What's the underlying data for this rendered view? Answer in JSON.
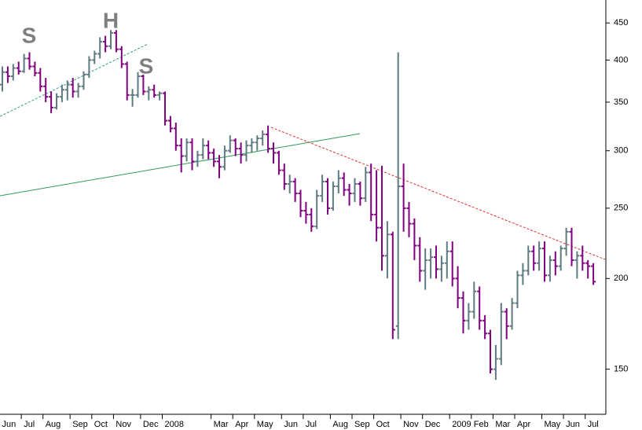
{
  "chart_data": {
    "type": "ohlc",
    "log_scale": true,
    "annotations": [
      "S",
      "H",
      "S"
    ],
    "categories": [
      "Jun",
      null,
      null,
      null,
      "Jul",
      null,
      null,
      null,
      "Aug",
      null,
      null,
      null,
      null,
      "Sep",
      null,
      null,
      null,
      "Oct",
      null,
      null,
      null,
      "Nov",
      null,
      null,
      null,
      null,
      "Dec",
      null,
      null,
      null,
      "2008",
      null,
      null,
      null,
      null,
      null,
      null,
      null,
      null,
      "Mar",
      null,
      null,
      null,
      "Apr",
      null,
      null,
      null,
      "May",
      null,
      null,
      null,
      null,
      "Jun",
      null,
      null,
      null,
      "Jul",
      null,
      null,
      null,
      null,
      "Aug",
      null,
      null,
      null,
      "Sep",
      null,
      null,
      null,
      "Oct",
      null,
      null,
      null,
      null,
      "Nov",
      null,
      null,
      null,
      "Dec",
      null,
      null,
      null,
      null,
      "2009",
      null,
      null,
      null,
      "Feb",
      null,
      null,
      null,
      "Mar",
      null,
      null,
      null,
      "Apr",
      null,
      null,
      null,
      null,
      "May",
      null,
      null,
      null,
      "Jun",
      null,
      null,
      null,
      "Jul",
      null
    ],
    "open": [
      370,
      385,
      380,
      390,
      386,
      402,
      392,
      384,
      368,
      356,
      344,
      356,
      364,
      370,
      362,
      368,
      382,
      400,
      408,
      424,
      418,
      436,
      414,
      395,
      358,
      358,
      380,
      362,
      364,
      358,
      360,
      330,
      322,
      305,
      295,
      308,
      290,
      296,
      305,
      298,
      290,
      285,
      300,
      310,
      302,
      296,
      305,
      308,
      312,
      316,
      302,
      298,
      282,
      270,
      272,
      262,
      248,
      245,
      236,
      260,
      272,
      250,
      268,
      275,
      265,
      262,
      270,
      258,
      280,
      245,
      235,
      215,
      230,
      172,
      268,
      250,
      238,
      222,
      205,
      212,
      214,
      206,
      210,
      218,
      200,
      188,
      175,
      180,
      192,
      175,
      168,
      150,
      155,
      180,
      172,
      185,
      202,
      205,
      218,
      210,
      220,
      202,
      212,
      208,
      220,
      232,
      212,
      215,
      210,
      208
    ],
    "high": [
      392,
      392,
      395,
      398,
      408,
      410,
      398,
      390,
      378,
      362,
      360,
      370,
      375,
      378,
      372,
      386,
      405,
      412,
      430,
      432,
      440,
      440,
      418,
      398,
      365,
      385,
      382,
      368,
      370,
      362,
      362,
      335,
      328,
      312,
      312,
      312,
      300,
      312,
      310,
      302,
      296,
      305,
      315,
      312,
      308,
      310,
      312,
      315,
      320,
      325,
      308,
      300,
      288,
      278,
      275,
      265,
      255,
      250,
      265,
      278,
      275,
      272,
      282,
      280,
      270,
      275,
      272,
      285,
      288,
      282,
      286,
      240,
      232,
      410,
      288,
      255,
      242,
      228,
      220,
      220,
      222,
      215,
      225,
      225,
      208,
      192,
      185,
      198,
      195,
      178,
      170,
      162,
      185,
      182,
      188,
      205,
      210,
      222,
      222,
      225,
      225,
      215,
      218,
      222,
      235,
      235,
      218,
      222,
      212,
      210
    ],
    "low": [
      362,
      372,
      375,
      382,
      384,
      388,
      380,
      362,
      350,
      338,
      342,
      350,
      352,
      355,
      355,
      364,
      378,
      395,
      402,
      410,
      414,
      410,
      390,
      352,
      345,
      355,
      358,
      352,
      355,
      352,
      325,
      318,
      300,
      280,
      290,
      282,
      285,
      292,
      292,
      285,
      275,
      282,
      298,
      295,
      288,
      290,
      298,
      300,
      305,
      298,
      288,
      278,
      265,
      262,
      255,
      243,
      238,
      232,
      234,
      255,
      245,
      248,
      262,
      260,
      252,
      255,
      252,
      255,
      240,
      225,
      205,
      200,
      165,
      165,
      232,
      228,
      212,
      198,
      193,
      200,
      200,
      198,
      200,
      195,
      182,
      168,
      170,
      176,
      170,
      165,
      148,
      145,
      152,
      165,
      170,
      182,
      196,
      202,
      205,
      205,
      198,
      198,
      202,
      205,
      215,
      208,
      200,
      205,
      200,
      196
    ],
    "close": [
      385,
      380,
      390,
      386,
      402,
      392,
      384,
      368,
      356,
      344,
      356,
      364,
      370,
      362,
      368,
      382,
      400,
      408,
      424,
      418,
      436,
      414,
      395,
      358,
      358,
      380,
      362,
      364,
      358,
      360,
      330,
      322,
      305,
      295,
      308,
      290,
      296,
      305,
      298,
      290,
      285,
      300,
      310,
      302,
      296,
      305,
      308,
      312,
      316,
      302,
      298,
      282,
      270,
      272,
      262,
      248,
      245,
      236,
      260,
      272,
      250,
      268,
      275,
      265,
      262,
      270,
      258,
      280,
      245,
      235,
      215,
      230,
      170,
      268,
      250,
      238,
      222,
      205,
      212,
      214,
      206,
      210,
      218,
      200,
      188,
      175,
      180,
      192,
      175,
      168,
      150,
      155,
      180,
      172,
      185,
      202,
      205,
      218,
      210,
      220,
      202,
      212,
      208,
      220,
      232,
      212,
      215,
      210,
      208,
      198
    ],
    "up_color": "#5f7a80",
    "down_color": "#800080",
    "ylim": [
      130,
      484
    ],
    "yticks": [
      150,
      200,
      250,
      300,
      350,
      400,
      450
    ]
  }
}
